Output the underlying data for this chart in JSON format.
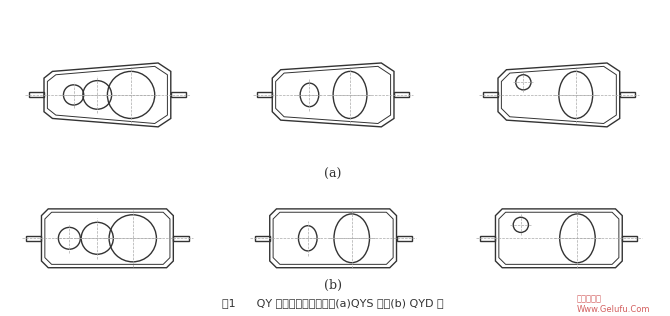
{
  "bg_color": "#ffffff",
  "line_color": "#333333",
  "label_a": "(a)",
  "label_b": "(b)",
  "caption": "图1      QY 型减速器结构简图：(a)QYS 型；(b) QYD 型",
  "watermark": "格鲁夫机械\nWww.Gelufu.Com",
  "watermark_color": "#cc4444",
  "lw": 1.0,
  "dashed_color": "#aaaaaa"
}
